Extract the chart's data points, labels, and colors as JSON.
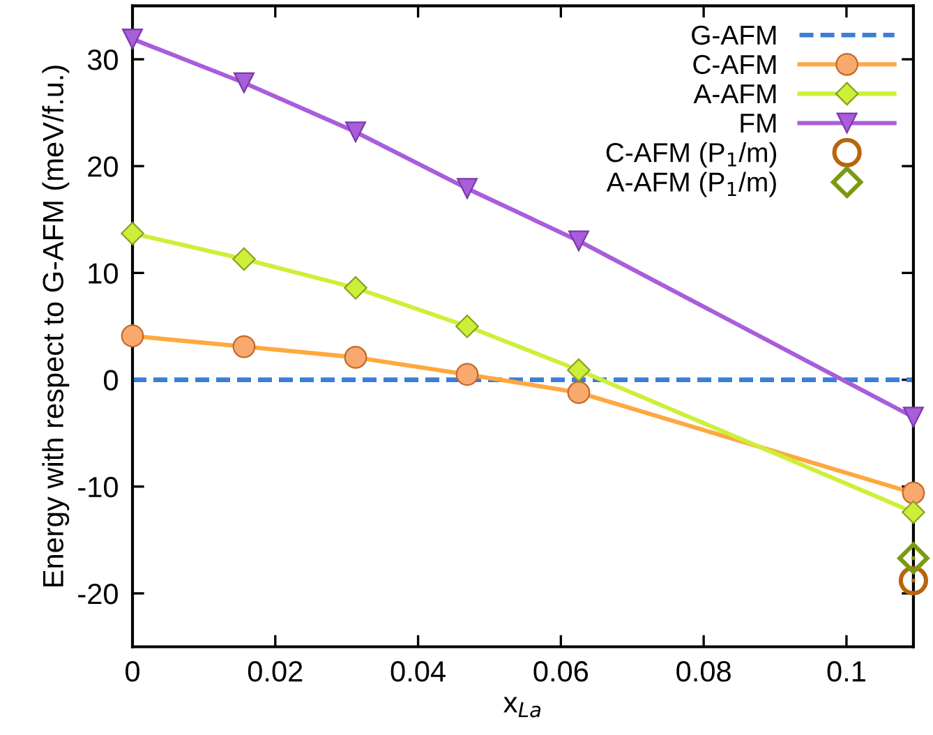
{
  "chart_data": {
    "type": "line",
    "xlabel": "x$_{La}$",
    "ylabel": "Energy with respect to G-AFM (meV/f.u.)",
    "xlim": [
      0,
      0.109375
    ],
    "ylim": [
      -25,
      35
    ],
    "xticks": [
      0,
      0.02,
      0.04,
      0.06,
      0.08,
      0.1
    ],
    "yticks": [
      -20,
      -10,
      0,
      10,
      20,
      30
    ],
    "grid": false,
    "legend": "top right",
    "ref_lines": [
      {
        "axis": "y",
        "value": 0,
        "label": "G-AFM",
        "color": "#3a7fd5",
        "line_style": "dashed"
      }
    ],
    "series": [
      {
        "name": "C-AFM",
        "color": "#ffa83f",
        "line_style": "solid",
        "marker": "circle",
        "x": [
          0,
          0.015625,
          0.03125,
          0.046875,
          0.0625,
          0.109375
        ],
        "values": [
          4.1,
          3.1,
          2.1,
          0.5,
          -1.2,
          -10.6
        ]
      },
      {
        "name": "A-AFM",
        "color": "#ccf03a",
        "line_style": "solid",
        "marker": "diamond",
        "x": [
          0,
          0.015625,
          0.03125,
          0.046875,
          0.0625,
          0.109375
        ],
        "values": [
          13.7,
          11.3,
          8.6,
          5.0,
          0.9,
          -12.4
        ]
      },
      {
        "name": "FM",
        "color": "#a95ddb",
        "line_style": "solid",
        "marker": "triangle",
        "x": [
          0,
          0.015625,
          0.03125,
          0.046875,
          0.0625,
          0.109375
        ],
        "values": [
          31.9,
          27.8,
          23.2,
          17.9,
          13.0,
          -3.5
        ]
      },
      {
        "name": "C-AFM (P$_{1}$/m)",
        "type": "scatter",
        "color": "#b8650e",
        "marker": "circle",
        "x": [
          0.109375
        ],
        "values": [
          -18.8
        ]
      },
      {
        "name": "A-AFM (P$_{1}$/m)",
        "type": "scatter",
        "color": "#7a9a10",
        "marker": "diamond",
        "x": [
          0.109375
        ],
        "values": [
          -16.7
        ]
      }
    ]
  }
}
